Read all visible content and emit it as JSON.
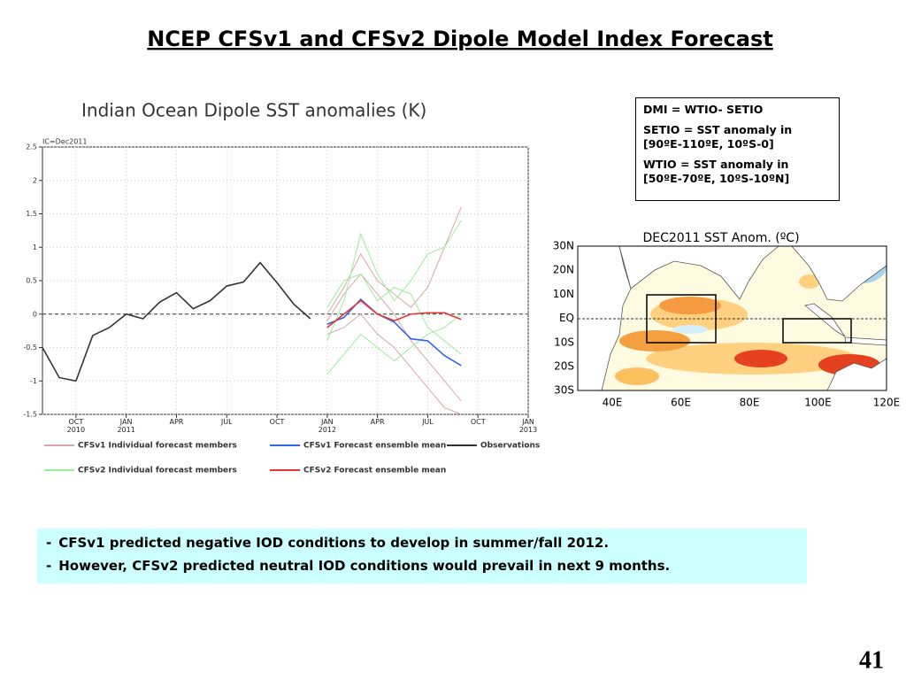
{
  "title": "NCEP CFSv1 and CFSv2 Dipole Model Index Forecast",
  "chart_data": {
    "type": "line",
    "title": "Indian Ocean Dipole SST anomalies (K)",
    "subtitle": "IC=Dec2011",
    "x": [
      "2010-08",
      "2010-09",
      "2010-10",
      "2010-11",
      "2010-12",
      "2011-01",
      "2011-02",
      "2011-03",
      "2011-04",
      "2011-05",
      "2011-06",
      "2011-07",
      "2011-08",
      "2011-09",
      "2011-10",
      "2011-11",
      "2011-12",
      "2012-01",
      "2012-02",
      "2012-03",
      "2012-04",
      "2012-05",
      "2012-06",
      "2012-07",
      "2012-08",
      "2012-09"
    ],
    "xlim": [
      "2010-08",
      "2013-01"
    ],
    "xticks": [
      {
        "value": "2010-10",
        "label": "OCT 2010"
      },
      {
        "value": "2011-01",
        "label": "JAN 2011"
      },
      {
        "value": "2011-04",
        "label": "APR"
      },
      {
        "value": "2011-07",
        "label": "JUL"
      },
      {
        "value": "2011-10",
        "label": "OCT"
      },
      {
        "value": "2012-01",
        "label": "JAN 2012"
      },
      {
        "value": "2012-04",
        "label": "APR"
      },
      {
        "value": "2012-07",
        "label": "JUL"
      },
      {
        "value": "2012-10",
        "label": "OCT"
      },
      {
        "value": "2013-01",
        "label": "JAN 2013"
      }
    ],
    "ylim": [
      -1.5,
      2.5
    ],
    "yticks": [
      2.5,
      2,
      1.5,
      1,
      0.5,
      0,
      -0.5,
      -1,
      -1.5
    ],
    "grid": true,
    "series": [
      {
        "name": "CFSv1 Individual forecast members",
        "color": "#d8a8a8",
        "members": [
          [
            null,
            null,
            null,
            null,
            null,
            null,
            null,
            null,
            null,
            null,
            null,
            null,
            null,
            null,
            null,
            null,
            null,
            -0.1,
            0.3,
            0.6,
            0.3,
            0.0,
            -0.4,
            -0.7,
            -1.0,
            -1.3
          ],
          [
            null,
            null,
            null,
            null,
            null,
            null,
            null,
            null,
            null,
            null,
            null,
            null,
            null,
            null,
            null,
            null,
            null,
            -0.3,
            -0.2,
            0.0,
            -0.3,
            -0.5,
            -0.8,
            -1.1,
            -1.4,
            -1.5
          ],
          [
            null,
            null,
            null,
            null,
            null,
            null,
            null,
            null,
            null,
            null,
            null,
            null,
            null,
            null,
            null,
            null,
            null,
            0.0,
            0.4,
            0.9,
            0.5,
            0.3,
            0.1,
            0.4,
            1.0,
            1.6
          ]
        ]
      },
      {
        "name": "CFSv1 Forecast ensemble mean",
        "color": "#3366ee",
        "values": [
          null,
          null,
          null,
          null,
          null,
          null,
          null,
          null,
          null,
          null,
          null,
          null,
          null,
          null,
          null,
          null,
          null,
          -0.15,
          -0.05,
          0.22,
          0.0,
          -0.12,
          -0.37,
          -0.4,
          -0.62,
          -0.77
        ]
      },
      {
        "name": "Observations",
        "color": "#333333",
        "values": [
          -0.5,
          -0.95,
          -1.0,
          -0.32,
          -0.2,
          0.0,
          -0.07,
          0.18,
          0.32,
          0.08,
          0.2,
          0.42,
          0.48,
          0.77,
          0.47,
          0.15,
          -0.07,
          null,
          null,
          null,
          null,
          null,
          null,
          null,
          null,
          null
        ]
      },
      {
        "name": "CFSv2 Individual forecast members",
        "color": "#99ee99",
        "members": [
          [
            null,
            null,
            null,
            null,
            null,
            null,
            null,
            null,
            null,
            null,
            null,
            null,
            null,
            null,
            null,
            null,
            null,
            -0.4,
            0.2,
            1.2,
            0.6,
            0.2,
            0.5,
            0.9,
            1.0,
            1.4
          ],
          [
            null,
            null,
            null,
            null,
            null,
            null,
            null,
            null,
            null,
            null,
            null,
            null,
            null,
            null,
            null,
            null,
            null,
            -0.9,
            -0.6,
            -0.3,
            -0.5,
            -0.7,
            -0.5,
            -0.3,
            -0.2,
            0.0
          ],
          [
            null,
            null,
            null,
            null,
            null,
            null,
            null,
            null,
            null,
            null,
            null,
            null,
            null,
            null,
            null,
            null,
            null,
            0.1,
            0.5,
            0.6,
            0.2,
            0.4,
            0.3,
            -0.2,
            -0.4,
            -0.6
          ]
        ]
      },
      {
        "name": "CFSv2 Forecast ensemble mean",
        "color": "#ee3333",
        "values": [
          null,
          null,
          null,
          null,
          null,
          null,
          null,
          null,
          null,
          null,
          null,
          null,
          null,
          null,
          null,
          null,
          null,
          -0.2,
          0.0,
          0.2,
          0.0,
          -0.1,
          0.0,
          0.02,
          0.02,
          -0.08
        ]
      }
    ]
  },
  "definitions": [
    [
      "DMI = WTIO- SETIO"
    ],
    [
      "SETIO = SST anomaly in",
      "[90ºE-110ºE, 10ºS-0]"
    ],
    [
      "WTIO = SST anomaly in",
      "[50ºE-70ºE, 10ºS-10ºN]"
    ]
  ],
  "map": {
    "title": "DEC2011 SST Anom. (ºC)",
    "lat_labels": [
      "30N",
      "20N",
      "10N",
      "EQ",
      "10S",
      "20S",
      "30S"
    ],
    "lon_labels": [
      "40E",
      "60E",
      "80E",
      "100E",
      "120E"
    ]
  },
  "bullets": [
    {
      "marker": "-",
      "text": "CFSv1 predicted negative IOD conditions to develop in summer/fall 2012."
    },
    {
      "marker": "-",
      "text": "However, CFSv2 predicted neutral IOD conditions would prevail in next 9 months."
    }
  ],
  "page_number": "41"
}
